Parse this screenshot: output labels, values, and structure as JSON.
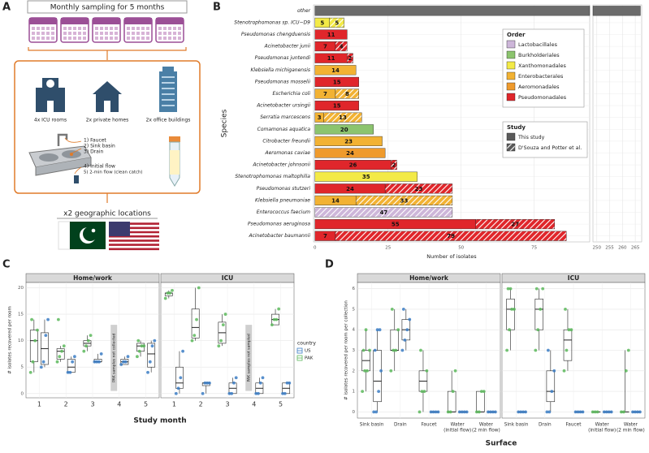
{
  "panel_labels": [
    "A",
    "B",
    "C",
    "D"
  ],
  "sampling": {
    "title": "Monthly sampling for 5 months",
    "sites": [
      "4x ICU rooms",
      "2x private homes",
      "2x office buildings"
    ],
    "sample_types": [
      "1) Faucet",
      "2) Sink basin",
      "3) Drain"
    ],
    "water_samples": [
      "4) Initial flow",
      "5) 2-min flow (clean catch)"
    ],
    "locations": "x2 geographic locations"
  },
  "chart_data": [
    {
      "type": "bar",
      "orientation": "horizontal",
      "ylabel": "Species",
      "xlabel": "Number of isolates",
      "categories": [
        "other",
        "Stenotrophomonas sp. ICU−D9",
        "Pseudomonas chengduensis",
        "Acinetobacter junii",
        "Pseudomonas juntendi",
        "Klebsiella michiganensis",
        "Pseudomonas mosselii",
        "Escherichia coli",
        "Acinetobacter ursingii",
        "Serratia marcescens",
        "Comamonas aquatica",
        "Citrobacter freundii",
        "Aeromonas caviae",
        "Acinetobacter johnsonii",
        "Stenotrophomonas maltophilia",
        "Pseudomonas stutzeri",
        "Klebsiella pneumoniae",
        "Enterococcus faecium",
        "Pseudomonas aeruginosa",
        "Acinetobacter baumannii"
      ],
      "orders": [
        null,
        "Xanthomonadales",
        "Pseudomonadales",
        "Pseudomonadales",
        "Pseudomonadales",
        "Enterobacterales",
        "Pseudomonadales",
        "Enterobacterales",
        "Pseudomonadales",
        "Enterobacterales",
        "Burkholderiales",
        "Enterobacterales",
        "Aeromonadales",
        "Pseudomonadales",
        "Xanthomonadales",
        "Pseudomonadales",
        "Enterobacterales",
        "Lactobacillales",
        "Pseudomonadales",
        "Pseudomonadales"
      ],
      "series": [
        {
          "name": "This study",
          "color": "#5a5a5a",
          "values": [
            267,
            5,
            11,
            7,
            11,
            14,
            15,
            7,
            15,
            3,
            20,
            23,
            24,
            26,
            35,
            24,
            14,
            null,
            55,
            7
          ]
        },
        {
          "name": "D'Souza and Potter et al.",
          "color": "#5a5a5a",
          "hatched": true,
          "values": [
            null,
            5,
            null,
            4,
            2,
            null,
            null,
            8,
            null,
            13,
            null,
            null,
            null,
            2,
            null,
            23,
            33,
            47,
            27,
            79
          ]
        }
      ],
      "other_color": "#6b6b6b",
      "order_legend": {
        "title": "Order",
        "items": [
          {
            "name": "Lactobacillales",
            "color": "#cdb6d9"
          },
          {
            "name": "Burkholderiales",
            "color": "#8cc46e"
          },
          {
            "name": "Xanthomonadales",
            "color": "#f3ea47"
          },
          {
            "name": "Enterobacterales",
            "color": "#f2b233"
          },
          {
            "name": "Aeromonadales",
            "color": "#ef9a2c"
          },
          {
            "name": "Pseudomonadales",
            "color": "#e0262b"
          }
        ]
      },
      "legend_title": "Study",
      "xlim": [
        -0.5,
        94
      ],
      "xticks": [
        0,
        25,
        50,
        75
      ],
      "x2lim": [
        248.5,
        267.5
      ],
      "x2ticks": [
        250,
        255,
        260,
        265
      ],
      "grid": true
    },
    {
      "type": "box",
      "facets": [
        "Home/work",
        "ICU"
      ],
      "categories": [
        [
          "1"
        ],
        [
          "2"
        ],
        [
          "3"
        ],
        [
          "4"
        ],
        [
          "5"
        ]
      ],
      "xlabel": "Study month",
      "ylabel": "# isolates recovered per room",
      "ylim": [
        -0.8,
        21
      ],
      "yticks": [
        0,
        5,
        10,
        15,
        20
      ],
      "grid": true,
      "legend_title": "country",
      "annotations": [
        "PAK samples not collected",
        "PAK samples not sampled"
      ],
      "series": [
        {
          "name": "US",
          "color": "#3b7dc4",
          "boxes": [
            [
              {
                "stats": [
                  5,
                  5.5,
                  8.5,
                  11.5,
                  14
                ],
                "points": [
                  5,
                  6,
                  11,
                  14
                ]
              },
              {
                "stats": [
                  4,
                  4,
                  5,
                  6.5,
                  7
                ],
                "points": [
                  4,
                  4,
                  6,
                  7
                ]
              },
              {
                "stats": [
                  6,
                  6,
                  6,
                  6.5,
                  7.5
                ],
                "points": [
                  6,
                  6,
                  6,
                  7.5
                ]
              },
              {
                "stats": [
                  5.5,
                  5.5,
                  6,
                  6.5,
                  7
                ],
                "points": [
                  5.5,
                  6,
                  6,
                  7
                ]
              },
              {
                "stats": [
                  4,
                  5,
                  7.5,
                  9.5,
                  10
                ],
                "points": [
                  4,
                  6,
                  9,
                  10
                ]
              }
            ],
            [
              {
                "stats": [
                  0,
                  1,
                  2,
                  5,
                  8
                ],
                "points": [
                  0,
                  1,
                  3,
                  8
                ]
              },
              {
                "stats": [
                  0,
                  1.5,
                  2,
                  2,
                  2
                ],
                "points": [
                  0,
                  2,
                  2,
                  2
                ]
              },
              {
                "stats": [
                  0,
                  0,
                  1,
                  2,
                  3
                ],
                "points": [
                  0,
                  0,
                  2,
                  3
                ]
              },
              {
                "stats": [
                  0,
                  0,
                  1,
                  2,
                  3
                ],
                "points": [
                  0,
                  0,
                  2,
                  3
                ]
              },
              {
                "stats": [
                  0,
                  0,
                  1,
                  2,
                  2
                ],
                "points": [
                  0,
                  0,
                  2,
                  2
                ]
              }
            ]
          ]
        },
        {
          "name": "PAK",
          "color": "#5cb85c",
          "boxes": [
            [
              {
                "stats": [
                  4,
                  6,
                  10,
                  12,
                  14
                ],
                "points": [
                  4,
                  6,
                  10,
                  12,
                  14
                ]
              },
              {
                "stats": [
                  6,
                  6.5,
                  8,
                  8.5,
                  9
                ],
                "points": [
                  6,
                  7,
                  8,
                  9,
                  14
                ]
              },
              {
                "stats": [
                  8,
                  9,
                  9.5,
                  10,
                  11
                ],
                "points": [
                  8,
                  9,
                  10,
                  11
                ]
              },
              null,
              {
                "stats": [
                  7,
                  8,
                  9,
                  9.5,
                  10
                ],
                "points": [
                  7,
                  8,
                  9,
                  9,
                  10
                ]
              }
            ],
            [
              {
                "stats": [
                  18,
                  18.5,
                  19,
                  19,
                  19.5
                ],
                "points": [
                  18,
                  19,
                  19,
                  19.5
                ]
              },
              {
                "stats": [
                  10,
                  10.5,
                  12.5,
                  16,
                  20
                ],
                "points": [
                  10,
                  11,
                  14,
                  20
                ]
              },
              {
                "stats": [
                  9,
                  9.5,
                  11.5,
                  13.5,
                  15
                ],
                "points": [
                  9,
                  10,
                  13,
                  15
                ]
              },
              null,
              {
                "stats": [
                  13,
                  13,
                  14,
                  15,
                  16
                ],
                "points": [
                  13,
                  14,
                  14,
                  16
                ]
              }
            ]
          ]
        }
      ]
    },
    {
      "type": "box",
      "facets": [
        "Home/work",
        "ICU"
      ],
      "categories": [
        [
          "Sink basin"
        ],
        [
          "Drain"
        ],
        [
          "Faucet"
        ],
        [
          "Water",
          "(initial flow)"
        ],
        [
          "Water",
          "(2 min flow)"
        ]
      ],
      "xlabel": "Surface",
      "ylabel": "# isolates recovered per room per collection",
      "ylim": [
        -0.3,
        6.3
      ],
      "yticks": [
        0,
        1,
        2,
        3,
        4,
        5,
        6
      ],
      "grid": true,
      "series": [
        {
          "name": "US",
          "color": "#3b7dc4",
          "boxes": [
            [
              {
                "stats": [
                  0,
                  0.5,
                  1.5,
                  3,
                  4
                ],
                "points": [
                  0,
                  0,
                  1,
                  2,
                  3,
                  4,
                  4
                ]
              },
              {
                "stats": [
                  3,
                  3.5,
                  4,
                  4.5,
                  5
                ],
                "points": [
                  3,
                  3.5,
                  4,
                  4.5,
                  5
                ]
              },
              {
                "stats": [
                  0,
                  0,
                  0,
                  0,
                  0
                ],
                "points": [
                  0,
                  0,
                  0,
                  0
                ]
              },
              {
                "stats": [
                  0,
                  0,
                  0,
                  0,
                  0
                ],
                "points": [
                  0,
                  0,
                  0,
                  0
                ]
              },
              {
                "stats": [
                  0,
                  0,
                  0,
                  0,
                  0
                ],
                "points": [
                  0,
                  0,
                  0,
                  0
                ]
              }
            ],
            [
              {
                "stats": [
                  0,
                  0,
                  0,
                  0,
                  0
                ],
                "points": [
                  0,
                  0,
                  0,
                  0
                ]
              },
              {
                "stats": [
                  0,
                  0.5,
                  1,
                  2,
                  3
                ],
                "points": [
                  0,
                  0,
                  1,
                  2,
                  3
                ]
              },
              {
                "stats": [
                  0,
                  0,
                  0,
                  0,
                  0
                ],
                "points": [
                  0,
                  0,
                  0,
                  0
                ]
              },
              {
                "stats": [
                  0,
                  0,
                  0,
                  0,
                  0
                ],
                "points": [
                  0,
                  0,
                  0,
                  0
                ]
              },
              {
                "stats": [
                  0,
                  0,
                  0,
                  0,
                  0
                ],
                "points": [
                  0,
                  0,
                  0,
                  0
                ]
              }
            ]
          ]
        },
        {
          "name": "PAK",
          "color": "#5cb85c",
          "boxes": [
            [
              {
                "stats": [
                  1,
                  2,
                  2.5,
                  3,
                  4
                ],
                "points": [
                  1,
                  2,
                  2,
                  3,
                  3,
                  4
                ]
              },
              {
                "stats": [
                  2,
                  3,
                  3,
                  4,
                  5
                ],
                "points": [
                  2,
                  3,
                  3,
                  4,
                  5
                ]
              },
              {
                "stats": [
                  0,
                  1,
                  1.5,
                  2,
                  3
                ],
                "points": [
                  0,
                  1,
                  1,
                  2,
                  3
                ]
              },
              {
                "stats": [
                  0,
                  0,
                  0,
                  1,
                  2
                ],
                "points": [
                  0,
                  0,
                  1,
                  2
                ]
              },
              {
                "stats": [
                  0,
                  0,
                  0,
                  1,
                  1
                ],
                "points": [
                  0,
                  0,
                  1,
                  1
                ]
              }
            ],
            [
              {
                "stats": [
                  3,
                  4,
                  5,
                  5.5,
                  6
                ],
                "points": [
                  3,
                  4,
                  5,
                  5,
                  6,
                  6
                ]
              },
              {
                "stats": [
                  3,
                  4,
                  5,
                  5.5,
                  6
                ],
                "points": [
                  3,
                  4,
                  5,
                  6,
                  6
                ]
              },
              {
                "stats": [
                  2,
                  2.5,
                  3.5,
                  4,
                  5
                ],
                "points": [
                  2,
                  3,
                  4,
                  4,
                  5
                ]
              },
              {
                "stats": [
                  0,
                  0,
                  0,
                  0,
                  0
                ],
                "points": [
                  0,
                  0,
                  0
                ]
              },
              {
                "stats": [
                  0,
                  0,
                  0,
                  0,
                  3
                ],
                "points": [
                  0,
                  0,
                  2,
                  3
                ]
              }
            ]
          ]
        }
      ]
    }
  ]
}
